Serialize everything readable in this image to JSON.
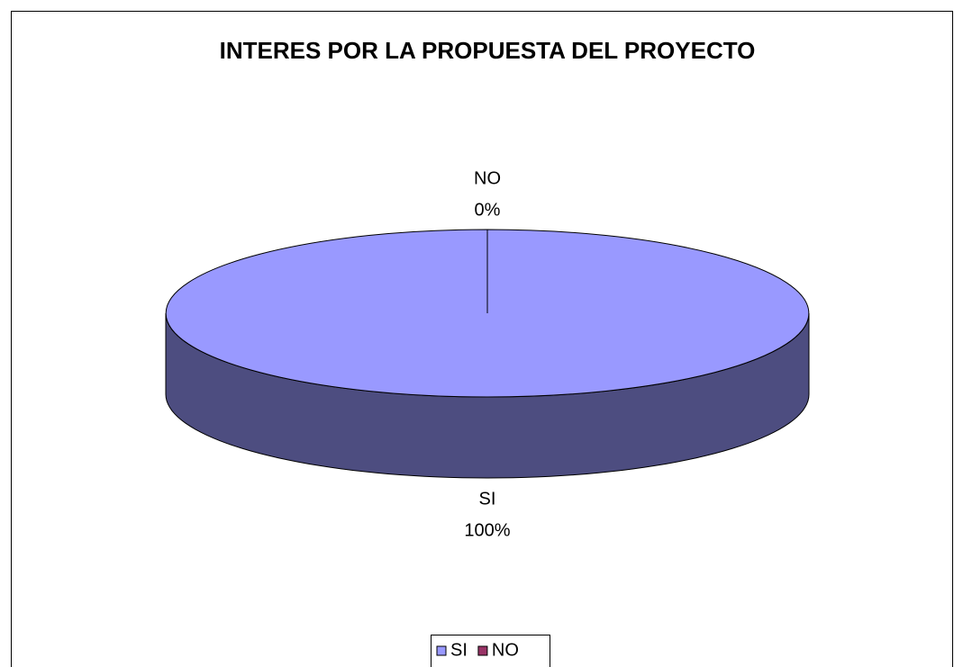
{
  "chart_data": {
    "type": "pie",
    "title": "INTERES POR LA PROPUESTA DEL PROYECTO",
    "categories": [
      "SI",
      "NO"
    ],
    "values": [
      100,
      0
    ],
    "value_labels": [
      "100%",
      "0%"
    ],
    "colors": [
      "#9999ff",
      "#993366"
    ],
    "legend": "bottom"
  }
}
